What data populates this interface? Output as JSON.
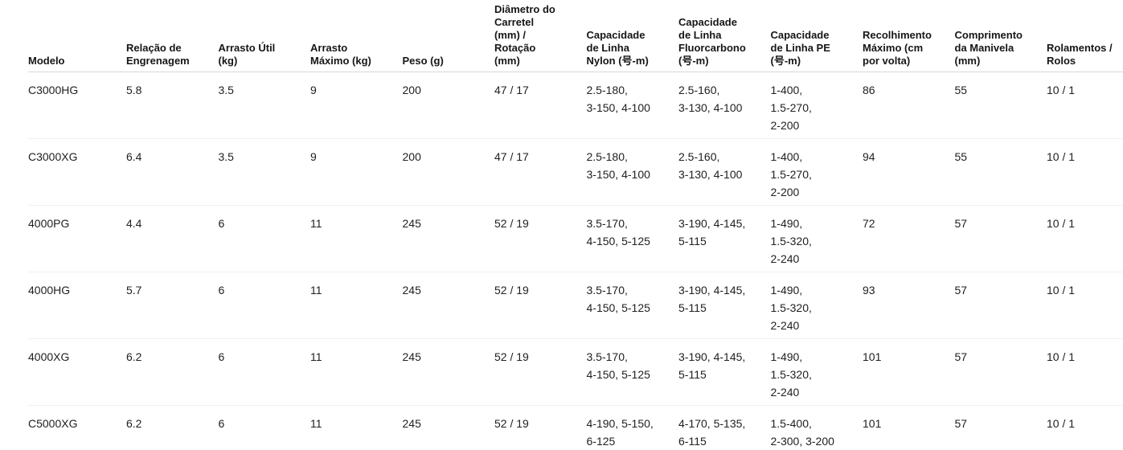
{
  "colors": {
    "background": "#ffffff",
    "header_text": "#161616",
    "body_text": "#212121",
    "header_border": "#d8d8d8",
    "row_border": "#f0f0f0"
  },
  "table": {
    "columns": [
      {
        "label": "Modelo"
      },
      {
        "label": "Relação de\nEngrenagem"
      },
      {
        "label": "Arrasto Útil\n(kg)"
      },
      {
        "label": "Arrasto\nMáximo (kg)"
      },
      {
        "label": "Peso (g)"
      },
      {
        "label": "Diâmetro do\nCarretel\n(mm) /\nRotação\n(mm)"
      },
      {
        "label": "Capacidade\nde Linha\nNylon (号-m)"
      },
      {
        "label": "Capacidade\nde Linha\nFluorcarbono\n(号-m)"
      },
      {
        "label": "Capacidade\nde Linha PE\n(号-m)"
      },
      {
        "label": "Recolhimento\nMáximo (cm\npor volta)"
      },
      {
        "label": "Comprimento\nda Manivela\n(mm)"
      },
      {
        "label": "Rolamentos /\nRolos"
      }
    ],
    "rows": [
      {
        "model": "C3000HG",
        "gear_ratio": "5.8",
        "usable_drag": "3.5",
        "max_drag": "9",
        "weight": "200",
        "spool_diameter_rotation": "47 / 17",
        "nylon_capacity": "2.5-180,\n3-150, 4-100",
        "fluoro_capacity": "2.5-160,\n3-130, 4-100",
        "pe_capacity": "1-400,\n1.5-270,\n2-200",
        "max_retrieve": "86",
        "handle_length": "55",
        "bearings_rollers": "10 / 1"
      },
      {
        "model": "C3000XG",
        "gear_ratio": "6.4",
        "usable_drag": "3.5",
        "max_drag": "9",
        "weight": "200",
        "spool_diameter_rotation": "47 / 17",
        "nylon_capacity": "2.5-180,\n3-150, 4-100",
        "fluoro_capacity": "2.5-160,\n3-130, 4-100",
        "pe_capacity": "1-400,\n1.5-270,\n2-200",
        "max_retrieve": "94",
        "handle_length": "55",
        "bearings_rollers": "10 / 1"
      },
      {
        "model": "4000PG",
        "gear_ratio": "4.4",
        "usable_drag": "6",
        "max_drag": "11",
        "weight": "245",
        "spool_diameter_rotation": "52 / 19",
        "nylon_capacity": "3.5-170,\n4-150, 5-125",
        "fluoro_capacity": "3-190, 4-145,\n5-115",
        "pe_capacity": "1-490,\n1.5-320,\n2-240",
        "max_retrieve": "72",
        "handle_length": "57",
        "bearings_rollers": "10 / 1"
      },
      {
        "model": "4000HG",
        "gear_ratio": "5.7",
        "usable_drag": "6",
        "max_drag": "11",
        "weight": "245",
        "spool_diameter_rotation": "52 / 19",
        "nylon_capacity": "3.5-170,\n4-150, 5-125",
        "fluoro_capacity": "3-190, 4-145,\n5-115",
        "pe_capacity": "1-490,\n1.5-320,\n2-240",
        "max_retrieve": "93",
        "handle_length": "57",
        "bearings_rollers": "10 / 1"
      },
      {
        "model": "4000XG",
        "gear_ratio": "6.2",
        "usable_drag": "6",
        "max_drag": "11",
        "weight": "245",
        "spool_diameter_rotation": "52 / 19",
        "nylon_capacity": "3.5-170,\n4-150, 5-125",
        "fluoro_capacity": "3-190, 4-145,\n5-115",
        "pe_capacity": "1-490,\n1.5-320,\n2-240",
        "max_retrieve": "101",
        "handle_length": "57",
        "bearings_rollers": "10 / 1"
      },
      {
        "model": "C5000XG",
        "gear_ratio": "6.2",
        "usable_drag": "6",
        "max_drag": "11",
        "weight": "245",
        "spool_diameter_rotation": "52 / 19",
        "nylon_capacity": "4-190, 5-150,\n6-125",
        "fluoro_capacity": "4-170, 5-135,\n6-115",
        "pe_capacity": "1.5-400,\n2-300, 3-200",
        "max_retrieve": "101",
        "handle_length": "57",
        "bearings_rollers": "10 / 1"
      }
    ]
  }
}
